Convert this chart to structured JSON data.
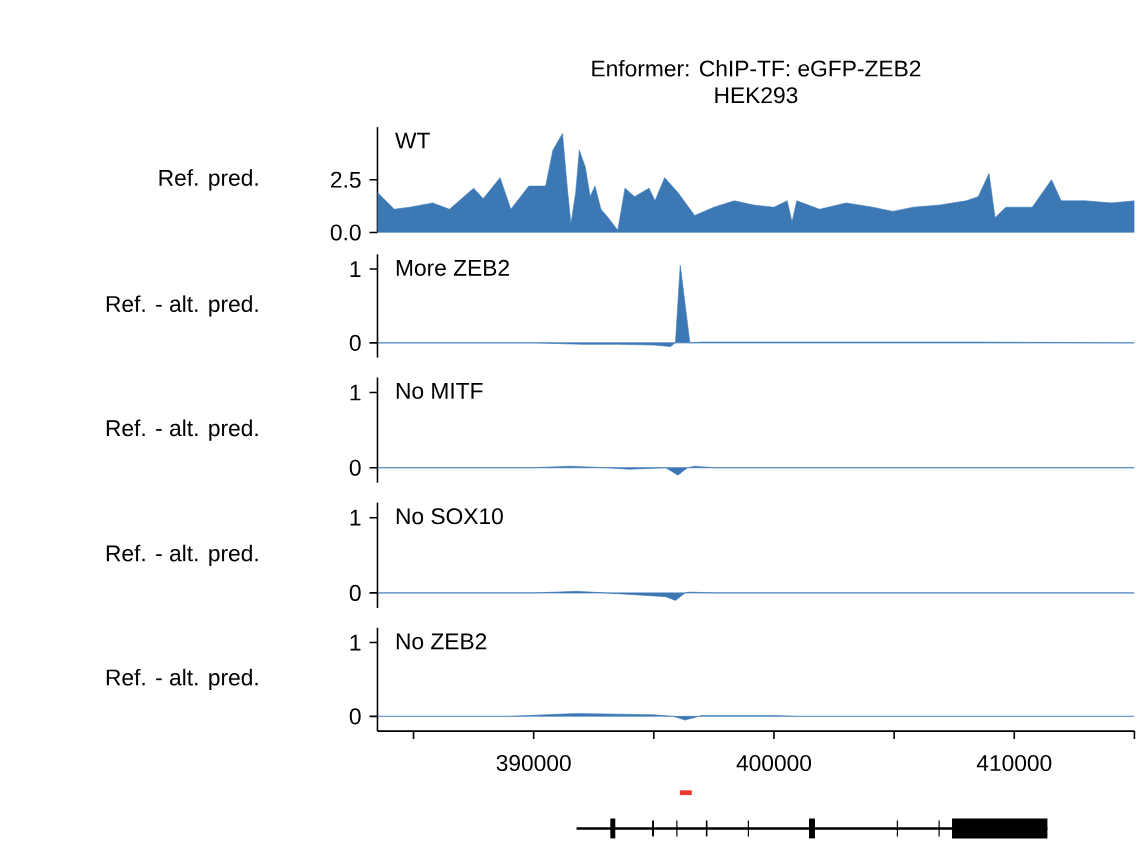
{
  "chart_data": [
    {
      "type": "area",
      "title": "Enformer: ChIP-TF: eGFP-ZEB2",
      "subtitle": "HEK293",
      "ylabel": "Ref. pred.",
      "tick_labels": "y",
      "xlim": [
        383500,
        415000
      ],
      "ylim": [
        0,
        5
      ],
      "yticks": [
        {
          "value": 0,
          "label": "0.0"
        },
        {
          "value": 2.5,
          "label": "2.5"
        }
      ],
      "x": [
        383500,
        384200,
        384850,
        385800,
        386500,
        387500,
        387900,
        388600,
        389050,
        389800,
        390500,
        390800,
        391200,
        391400,
        391550,
        391750,
        391900,
        392150,
        392350,
        392550,
        392800,
        393100,
        393500,
        393800,
        394200,
        394800,
        395050,
        395450,
        396000,
        396700,
        397500,
        398350,
        399150,
        400000,
        400550,
        400750,
        400950,
        401900,
        403000,
        404100,
        404950,
        405800,
        406900,
        408000,
        408500,
        408950,
        409200,
        409650,
        410750,
        411550,
        411950,
        412950,
        414050,
        415000
      ],
      "series": [
        {
          "name": "WT",
          "color": "#3b78b4",
          "values": [
            1.9,
            1.1,
            1.2,
            1.4,
            1.1,
            2.1,
            1.6,
            2.6,
            1.1,
            2.2,
            2.2,
            3.9,
            4.7,
            2.1,
            0.4,
            1.9,
            3.9,
            3.1,
            1.7,
            2.2,
            1.1,
            0.7,
            0.1,
            2.1,
            1.7,
            2.1,
            1.5,
            2.6,
            1.9,
            0.8,
            1.2,
            1.5,
            1.3,
            1.2,
            1.5,
            0.5,
            1.5,
            1.1,
            1.4,
            1.2,
            1.0,
            1.2,
            1.3,
            1.5,
            1.7,
            2.8,
            0.7,
            1.2,
            1.2,
            2.5,
            1.5,
            1.5,
            1.4,
            1.5
          ]
        }
      ]
    },
    {
      "type": "area",
      "ylabel": "Ref. - alt. pred.",
      "tick_labels": "y",
      "xlim": [
        383500,
        415000
      ],
      "ylim": [
        -0.2,
        1.2
      ],
      "yticks": [
        0,
        1
      ],
      "x": [
        383500,
        390000,
        392000,
        393500,
        395000,
        395700,
        395900,
        396100,
        396500,
        397000,
        408500,
        415000
      ],
      "series": [
        {
          "name": "More ZEB2",
          "color": "#3b78b4",
          "values": [
            0,
            0,
            -0.02,
            -0.02,
            -0.03,
            -0.05,
            0,
            1.05,
            0,
            0.01,
            0.01,
            0
          ]
        }
      ]
    },
    {
      "type": "area",
      "ylabel": "Ref. - alt. pred.",
      "tick_labels": "y",
      "xlim": [
        383500,
        415000
      ],
      "ylim": [
        -0.2,
        1.2
      ],
      "yticks": [
        0,
        1
      ],
      "x": [
        383500,
        390000,
        391500,
        393000,
        394000,
        395500,
        396000,
        396400,
        396700,
        397500,
        415000
      ],
      "series": [
        {
          "name": "No MITF",
          "color": "#3b78b4",
          "values": [
            0,
            0,
            0.02,
            0,
            -0.02,
            0,
            -0.1,
            0,
            0.02,
            0,
            0
          ]
        }
      ]
    },
    {
      "type": "area",
      "ylabel": "Ref. - alt. pred.",
      "tick_labels": "y",
      "xlim": [
        383500,
        415000
      ],
      "ylim": [
        -0.2,
        1.2
      ],
      "yticks": [
        0,
        1
      ],
      "x": [
        383500,
        390000,
        391800,
        393000,
        394000,
        395500,
        395900,
        396300,
        396500,
        397500,
        415000
      ],
      "series": [
        {
          "name": "No SOX10",
          "color": "#3b78b4",
          "values": [
            0,
            0,
            0.02,
            0,
            -0.02,
            -0.05,
            -0.1,
            0,
            0.01,
            0,
            0
          ]
        }
      ]
    },
    {
      "type": "area",
      "ylabel": "Ref. - alt. pred.",
      "xlim": [
        383500,
        415000
      ],
      "ylim": [
        -0.2,
        1.2
      ],
      "yticks": [
        0,
        1
      ],
      "xticks": [
        {
          "value": 385000,
          "label": null
        },
        390000,
        {
          "value": 395000,
          "label": null
        },
        400000,
        {
          "value": 405000,
          "label": null
        },
        410000,
        {
          "value": 415000,
          "label": null
        }
      ],
      "x": [
        383500,
        389000,
        390500,
        391800,
        393500,
        395000,
        395800,
        396300,
        397000,
        400000,
        401000,
        415000
      ],
      "series": [
        {
          "name": "No ZEB2",
          "color": "#3b78b4",
          "values": [
            0,
            0,
            0.02,
            0.04,
            0.03,
            0.02,
            0,
            -0.05,
            0.01,
            0.01,
            0,
            0
          ]
        }
      ]
    }
  ]
}
